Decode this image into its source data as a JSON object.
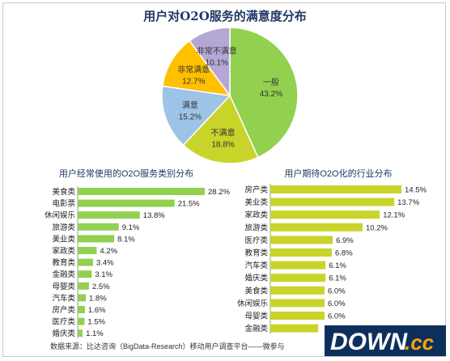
{
  "colors": {
    "pie": [
      "#92D050",
      "#C9D42A",
      "#9DC3E6",
      "#FFC000",
      "#FFB266",
      "#B4A7D6"
    ],
    "bar_left": "#92D050",
    "bar_right": "#C9D42A"
  },
  "source_note": "数据来源：比达咨询（BigData-Research）移动用户调查平台——微参与",
  "watermark": {
    "text_main": "DOWN",
    "text_cc": ".cc"
  },
  "chart_data": [
    {
      "type": "pie",
      "title": "用户对O2O服务的满意度分布",
      "categories": [
        "一般",
        "不满意",
        "满意",
        "非常满意",
        "非常不满意"
      ],
      "values": [
        43.2,
        18.8,
        15.2,
        12.7,
        10.1
      ],
      "labels": [
        "43.2%",
        "18.8%",
        "15.2%",
        "12.7%",
        "10.1%"
      ],
      "colors": [
        "#92D050",
        "#C9D42A",
        "#9DC3E6",
        "#FFC000",
        "#B4A7D6"
      ]
    },
    {
      "type": "bar",
      "orientation": "horizontal",
      "title": "用户经常使用的O2O服务类别分布",
      "categories": [
        "美食类",
        "电影票",
        "休闲娱乐",
        "旅游类",
        "美业类",
        "家政类",
        "教育类",
        "金融类",
        "母婴类",
        "汽车类",
        "房产类",
        "医疗类",
        "婚庆类"
      ],
      "values": [
        28.2,
        21.5,
        13.8,
        9.1,
        8.1,
        4.2,
        3.4,
        3.1,
        2.5,
        1.8,
        1.6,
        1.5,
        1.1
      ],
      "labels": [
        "28.2%",
        "21.5%",
        "13.8%",
        "9.1%",
        "8.1%",
        "4.2%",
        "3.4%",
        "3.1%",
        "2.5%",
        "1.8%",
        "1.6%",
        "1.5%",
        "1.1%"
      ],
      "xlim": [
        0,
        28.2
      ],
      "grid": false,
      "color": "#92D050"
    },
    {
      "type": "bar",
      "orientation": "horizontal",
      "title": "用户期待O2O化的行业分布",
      "categories": [
        "房产类",
        "美业类",
        "家政类",
        "旅游类",
        "医疗类",
        "教育类",
        "汽车类",
        "婚庆类",
        "美食类",
        "休闲娱乐",
        "母婴类",
        "金融类"
      ],
      "values": [
        14.5,
        13.7,
        12.1,
        10.2,
        6.9,
        6.8,
        6.1,
        6.1,
        6.0,
        6.0,
        6.0,
        5.3
      ],
      "labels": [
        "14.5%",
        "13.7%",
        "12.1%",
        "10.2%",
        "6.9%",
        "6.8%",
        "6.1%",
        "6.1%",
        "6.0%",
        "6.0%",
        "6.0%",
        ""
      ],
      "xlim": [
        0,
        14.5
      ],
      "grid": false,
      "color": "#C9D42A"
    }
  ]
}
